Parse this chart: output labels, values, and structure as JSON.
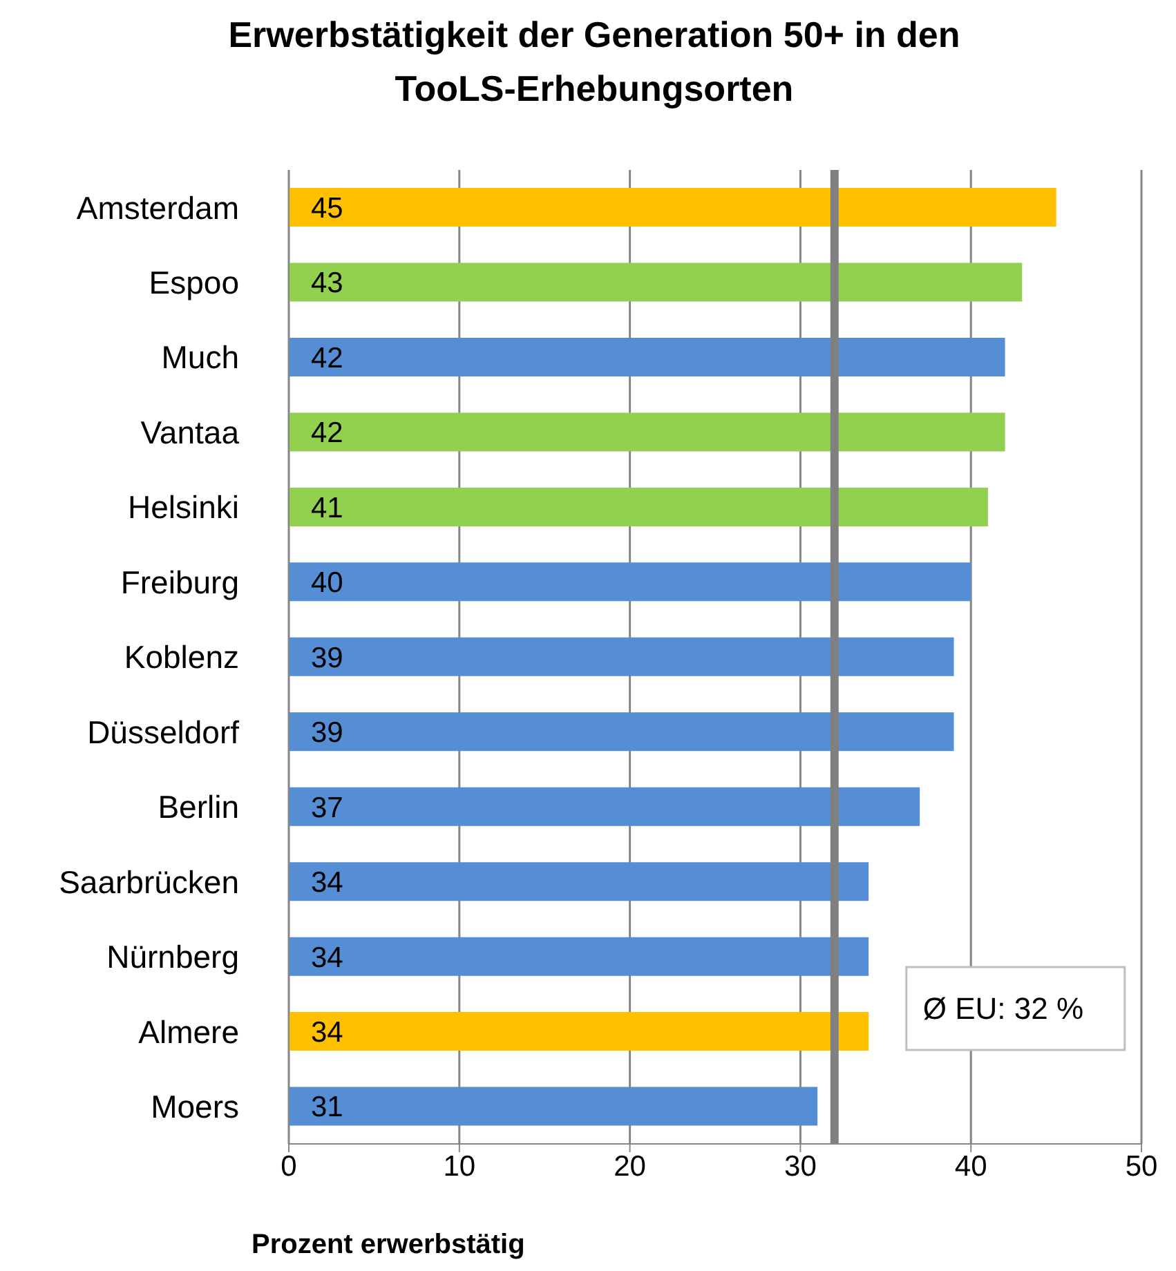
{
  "chart_data": {
    "type": "bar",
    "orientation": "horizontal",
    "title": "Erwerbstätigkeit der Generation 50+ in den TooLS-Erhebungsorten",
    "xlabel": "Prozent erwerbstätig",
    "categories": [
      "Amsterdam",
      "Espoo",
      "Much",
      "Vantaa",
      "Helsinki",
      "Freiburg",
      "Koblenz",
      "Düsseldorf",
      "Berlin",
      "Saarbrücken",
      "Nürnberg",
      "Almere",
      "Moers"
    ],
    "values": [
      45,
      43,
      42,
      42,
      41,
      40,
      39,
      39,
      37,
      34,
      34,
      34,
      31
    ],
    "colors": [
      "#ffc000",
      "#92d050",
      "#558ed5",
      "#92d050",
      "#92d050",
      "#558ed5",
      "#558ed5",
      "#558ed5",
      "#558ed5",
      "#558ed5",
      "#558ed5",
      "#ffc000",
      "#558ed5"
    ],
    "data_labels": true,
    "xlim": [
      0,
      50
    ],
    "xticks": [
      0,
      10,
      20,
      30,
      40,
      50
    ],
    "grid": "x",
    "ref_lines": [
      {
        "axis": "x",
        "value": 32,
        "label": "Ø EU: 32 %",
        "color": "#808080"
      }
    ]
  }
}
